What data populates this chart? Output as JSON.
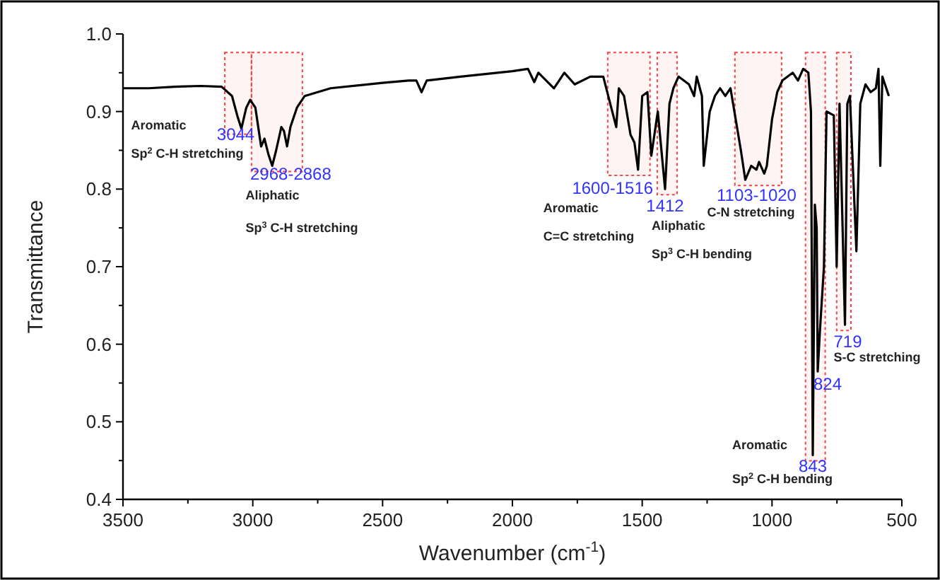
{
  "chart_data": {
    "type": "line",
    "xlabel": "Wavenumber (cm$^{-1}$)",
    "ylabel": "Transmittance",
    "xlim": [
      3500,
      500
    ],
    "ylim": [
      0.4,
      1.0
    ],
    "xticks": [
      3500,
      {
        "value": 3250,
        "label": null
      },
      3000,
      {
        "value": 2750,
        "label": null
      },
      2500,
      {
        "value": 2250,
        "label": null
      },
      2000,
      {
        "value": 1750,
        "label": null
      },
      1500,
      {
        "value": 1250,
        "label": null
      },
      1000,
      {
        "value": 750,
        "label": null
      },
      500
    ],
    "yticks": [
      0.4,
      {
        "value": 0.45,
        "label": null
      },
      0.5,
      {
        "value": 0.55,
        "label": null
      },
      0.6,
      {
        "value": 0.65,
        "label": null
      },
      0.7,
      {
        "value": 0.75,
        "label": null
      },
      0.8,
      {
        "value": 0.85,
        "label": null
      },
      0.9,
      {
        "value": 0.95,
        "label": null
      },
      {
        "value": 1.0,
        "label": "1.0"
      }
    ],
    "marker": "none",
    "line_style": "solid",
    "series": [
      {
        "color": "#000000",
        "x": [
          3500,
          3400,
          3300,
          3200,
          3120,
          3080,
          3060,
          3044,
          3025,
          3010,
          2990,
          2968,
          2955,
          2940,
          2925,
          2910,
          2890,
          2880,
          2868,
          2855,
          2830,
          2800,
          2700,
          2500,
          2400,
          2370,
          2350,
          2330,
          2200,
          2000,
          1940,
          1916,
          1900,
          1840,
          1800,
          1760,
          1700,
          1650,
          1600,
          1590,
          1570,
          1545,
          1530,
          1516,
          1500,
          1480,
          1465,
          1440,
          1412,
          1395,
          1380,
          1360,
          1340,
          1320,
          1300,
          1290,
          1270,
          1263,
          1240,
          1220,
          1200,
          1180,
          1160,
          1120,
          1103,
          1080,
          1060,
          1050,
          1030,
          1020,
          1000,
          980,
          960,
          940,
          920,
          900,
          880,
          860,
          850,
          843,
          835,
          828,
          824,
          815,
          800,
          790,
          762,
          751,
          740,
          719,
          710,
          700,
          675,
          660,
          640,
          620,
          600,
          590,
          583,
          575,
          560,
          550
        ],
        "values": [
          0.93,
          0.93,
          0.932,
          0.933,
          0.932,
          0.92,
          0.895,
          0.878,
          0.905,
          0.915,
          0.905,
          0.855,
          0.865,
          0.845,
          0.83,
          0.85,
          0.88,
          0.875,
          0.855,
          0.88,
          0.905,
          0.92,
          0.93,
          0.937,
          0.94,
          0.94,
          0.925,
          0.94,
          0.945,
          0.952,
          0.955,
          0.938,
          0.95,
          0.93,
          0.95,
          0.935,
          0.945,
          0.945,
          0.88,
          0.93,
          0.92,
          0.87,
          0.86,
          0.825,
          0.92,
          0.925,
          0.843,
          0.9,
          0.8,
          0.91,
          0.93,
          0.945,
          0.94,
          0.935,
          0.92,
          0.945,
          0.92,
          0.83,
          0.9,
          0.92,
          0.93,
          0.92,
          0.93,
          0.85,
          0.812,
          0.83,
          0.825,
          0.835,
          0.82,
          0.83,
          0.89,
          0.925,
          0.94,
          0.945,
          0.95,
          0.94,
          0.955,
          0.95,
          0.9,
          0.457,
          0.78,
          0.75,
          0.565,
          0.62,
          0.7,
          0.9,
          0.895,
          0.7,
          0.91,
          0.625,
          0.91,
          0.92,
          0.72,
          0.91,
          0.935,
          0.925,
          0.93,
          0.955,
          0.83,
          0.945,
          0.93,
          0.92
        ]
      }
    ],
    "bands": [
      {
        "axis": "x",
        "from": 3108,
        "to": 3005,
        "color": "#ff4040"
      },
      {
        "axis": "x",
        "from": 3005,
        "to": 2809,
        "color": "#ff4040"
      },
      {
        "axis": "x",
        "from": 1633,
        "to": 1470,
        "color": "#ff4040"
      },
      {
        "axis": "x",
        "from": 1442,
        "to": 1366,
        "color": "#ff4040"
      },
      {
        "axis": "x",
        "from": 1143,
        "to": 963,
        "color": "#ff4040"
      },
      {
        "axis": "x",
        "from": 871,
        "to": 795,
        "color": "#ff4040"
      },
      {
        "axis": "x",
        "from": 751,
        "to": 696,
        "color": "#ff4040"
      }
    ],
    "annotations": [
      {
        "text": "3044",
        "x": 3044,
        "y": 0.878
      },
      "Aromatic",
      "Sp$^{2}$ C-H stretching",
      {
        "text": "2968-2868",
        "x": 2968,
        "y": 0.855
      },
      "Aliphatic",
      "Sp$^{3}$ C-H stretching",
      {
        "text": "1600-1516",
        "x": 1516,
        "y": 0.825
      },
      "Aromatic",
      "C=C stretching",
      {
        "text": "1412",
        "x": 1412,
        "y": 0.8
      },
      "Aliphatic",
      "Sp$^{3}$ C-H bending",
      {
        "text": "1103-1020",
        "x": 1103,
        "y": 0.812
      },
      "C-N stretching",
      {
        "text": "719",
        "x": 719,
        "y": 0.625
      },
      "S-C stretching",
      {
        "text": "824",
        "x": 824,
        "y": 0.565
      },
      {
        "text": "843",
        "x": 843,
        "y": 0.457
      },
      "Aromatic",
      "Sp$^{2}$ C-H bending"
    ]
  }
}
